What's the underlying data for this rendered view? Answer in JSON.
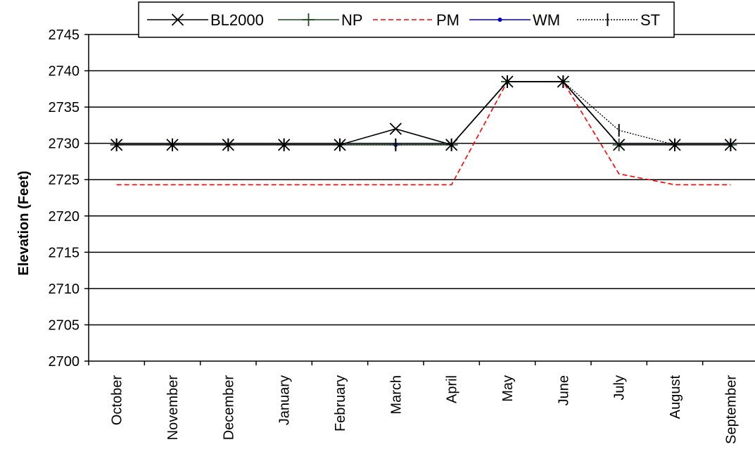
{
  "chart_data": {
    "type": "line",
    "title": "",
    "xlabel": "",
    "ylabel": "Elevation (Feet)",
    "ylim": [
      2700,
      2745
    ],
    "yticks": [
      2700,
      2705,
      2710,
      2715,
      2720,
      2725,
      2730,
      2735,
      2740,
      2745
    ],
    "grid": "horizontal",
    "legend_position": "top",
    "categories": [
      "October",
      "November",
      "December",
      "January",
      "February",
      "March",
      "April",
      "May",
      "June",
      "July",
      "August",
      "September"
    ],
    "series": [
      {
        "name": "BL2000",
        "color": "#000000",
        "dash": "solid",
        "marker": "x",
        "values": [
          2729.8,
          2729.8,
          2729.8,
          2729.8,
          2729.8,
          2732.0,
          2729.8,
          2738.5,
          2738.5,
          2729.8,
          2729.8,
          2729.8
        ]
      },
      {
        "name": "NP",
        "color": "#1a4a1a",
        "dash": "solid",
        "marker": "plus",
        "values": [
          2729.8,
          2729.8,
          2729.8,
          2729.8,
          2729.8,
          2729.8,
          2729.8,
          2738.5,
          2738.5,
          2729.8,
          2729.8,
          2729.8
        ]
      },
      {
        "name": "PM",
        "color": "#ff0000",
        "dash": "dashed",
        "marker": "none",
        "values": [
          2724.3,
          2724.3,
          2724.3,
          2724.3,
          2724.3,
          2724.3,
          2724.3,
          2738.5,
          2738.5,
          2725.8,
          2724.3,
          2724.3
        ]
      },
      {
        "name": "WM",
        "color": "#0000cc",
        "dash": "solid",
        "marker": "dot",
        "values": [
          2729.8,
          2729.8,
          2729.8,
          2729.8,
          2729.8,
          2729.8,
          2729.8,
          2738.5,
          2738.5,
          2729.8,
          2729.8,
          2729.8
        ]
      },
      {
        "name": "ST",
        "color": "#000000",
        "dash": "dotted",
        "marker": "bar",
        "values": [
          2729.8,
          2729.8,
          2729.8,
          2729.8,
          2729.8,
          2729.8,
          2729.8,
          2738.5,
          2738.5,
          2731.8,
          2729.8,
          2729.8
        ]
      }
    ]
  }
}
